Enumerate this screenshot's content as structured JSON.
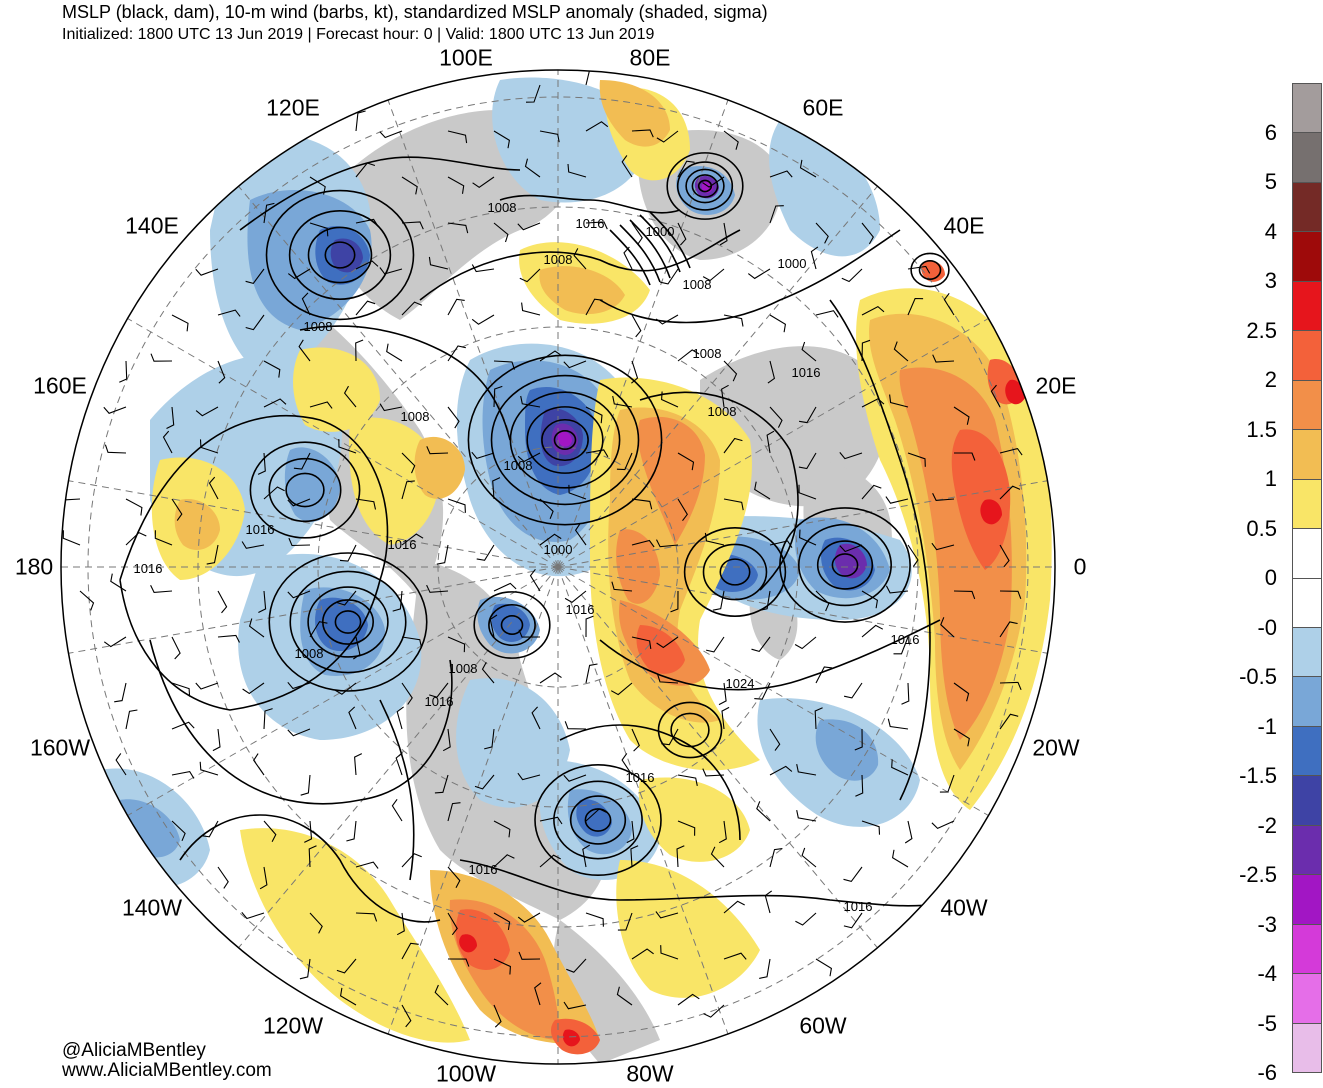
{
  "title": {
    "main": "MSLP (black, dam), 10-m wind (barbs, kt), standardized MSLP anomaly (shaded, sigma)",
    "sub": "Initialized: 1800 UTC 13 Jun 2019 | Forecast hour: 0 | Valid: 1800 UTC 13 Jun 2019"
  },
  "longitude_labels": [
    "100E",
    "80E",
    "120E",
    "60E",
    "140E",
    "40E",
    "160E",
    "20E",
    "180",
    "0",
    "160W",
    "20W",
    "140W",
    "40W",
    "120W",
    "60W",
    "100W",
    "80W"
  ],
  "isobar_labels": [
    "1008",
    "1016",
    "1000",
    "1008",
    "1008",
    "1000",
    "1008",
    "1008",
    "1016",
    "1008",
    "1008",
    "1008",
    "1000",
    "1016",
    "1016",
    "1016",
    "1016",
    "1008",
    "1008",
    "1016",
    "1024",
    "1016",
    "1016",
    "1016",
    "1016"
  ],
  "colorbar": {
    "labels": [
      "6",
      "5",
      "4",
      "3",
      "2.5",
      "2",
      "1.5",
      "1",
      "0.5",
      "0",
      "-0",
      "-0.5",
      "-1",
      "-1.5",
      "-2",
      "-2.5",
      "-3",
      "-4",
      "-5",
      "-6"
    ],
    "colors": [
      "#a39c9c",
      "#76706f",
      "#742a26",
      "#9e0a0a",
      "#e6151c",
      "#f3613a",
      "#f28f49",
      "#f2bd53",
      "#f9e567",
      "#ffffff",
      "#ffffff",
      "#aed0e8",
      "#79a7d7",
      "#3f6fc0",
      "#3e43a5",
      "#6b2dad",
      "#a216c4",
      "#d43ad9",
      "#e56ee8",
      "#e8bde9"
    ]
  },
  "shading_colors": {
    "ocean": "#ffffff",
    "land": "#c9c9c9",
    "neg1": "#aed0e8",
    "neg2": "#79a7d7",
    "neg3": "#3f6fc0",
    "neg4": "#3e43a5",
    "neg5": "#6b2dad",
    "neg6": "#a216c4",
    "pos1": "#f9e567",
    "pos2": "#f2bd53",
    "pos3": "#f28f49",
    "pos4": "#f3613a",
    "pos5": "#e6151c"
  },
  "credits": {
    "handle": "@AliciaMBentley",
    "site": "www.AliciaMBentley.com"
  }
}
